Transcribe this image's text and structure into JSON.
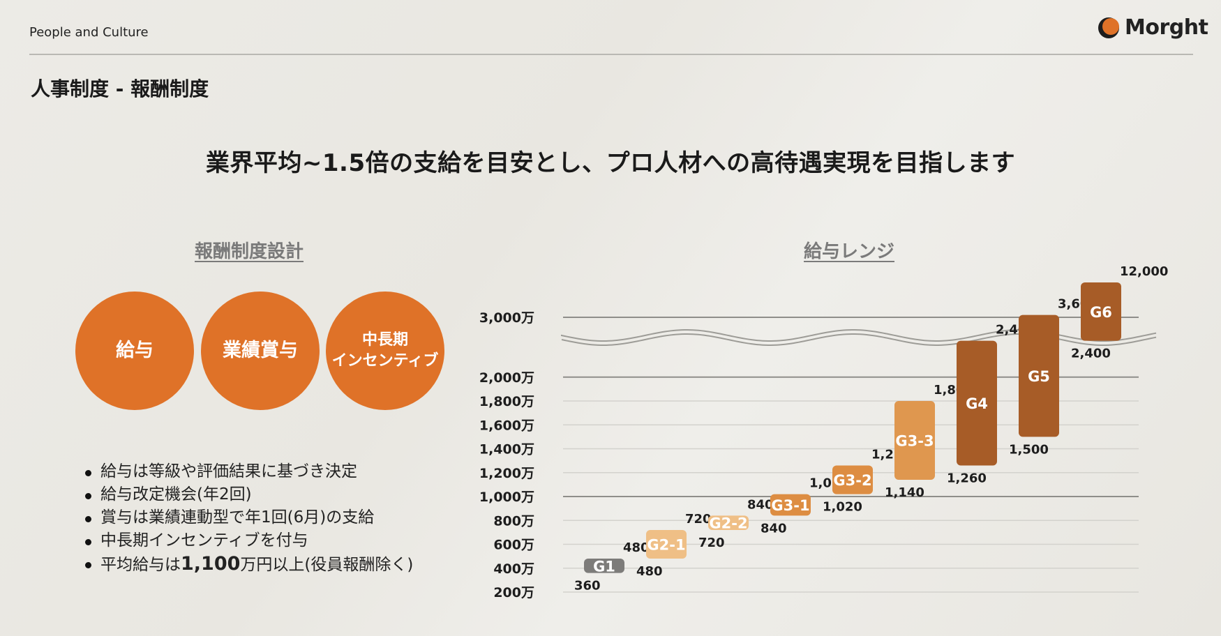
{
  "header": {
    "label": "People and Culture",
    "brand": "Morght",
    "brand_color": "#df7228"
  },
  "page_title": "人事制度 - 報酬制度",
  "headline": "業界平均~1.5倍の支給を目安とし、プロ人材への高待遇実現を目指します",
  "left_section": {
    "title": "報酬制度設計",
    "circles": [
      {
        "lines": [
          "給与"
        ]
      },
      {
        "lines": [
          "業績賞与"
        ]
      },
      {
        "lines": [
          "中長期",
          "インセンティブ"
        ]
      }
    ],
    "bullets": [
      {
        "text": "給与は等級や評価結果に基づき決定"
      },
      {
        "text": "給与改定機会(年2回)"
      },
      {
        "text": "賞与は業績連動型で年1回(6月)の支給"
      },
      {
        "text": "中長期インセンティブを付与"
      },
      {
        "prefix": "平均給与は",
        "highlight": "1,100",
        "suffix": "万円以上(役員報酬除く)"
      }
    ],
    "circle_color": "#df7228"
  },
  "chart_data": {
    "type": "range_bar",
    "title": "給与レンジ",
    "unit": "万",
    "y_ticks": [
      "200万",
      "400万",
      "600万",
      "800万",
      "1,000万",
      "1,200万",
      "1,400万",
      "1,600万",
      "1,800万",
      "2,000万",
      "3,000万"
    ],
    "axis_break": {
      "between": [
        "2,000万",
        "3,000万"
      ]
    },
    "grades": [
      {
        "name": "G1",
        "min": 360,
        "max": 480,
        "min_label": "360",
        "max_label": "480",
        "color": "#7d7c7a"
      },
      {
        "name": "G2-1",
        "min": 480,
        "max": 720,
        "min_label": "480",
        "max_label": "720",
        "color": "#efbf86"
      },
      {
        "name": "G2-2",
        "min": 720,
        "max": 840,
        "min_label": "720",
        "max_label": "840",
        "color": "#efbf86"
      },
      {
        "name": "G3-1",
        "min": 840,
        "max": 1020,
        "min_label": "840",
        "max_label": "1,020",
        "color": "#dd8d42"
      },
      {
        "name": "G3-2",
        "min": 1020,
        "max": 1260,
        "min_label": "1,020",
        "max_label": "1,260",
        "color": "#dd8d42"
      },
      {
        "name": "G3-3",
        "min": 1140,
        "max": 1800,
        "min_label": "1,140",
        "max_label": "1,800",
        "color": "#df974f"
      },
      {
        "name": "G4",
        "min": 1260,
        "max": 2400,
        "min_label": "1,260",
        "max_label": "2,400",
        "color": "#a75c27"
      },
      {
        "name": "G5",
        "min": 1500,
        "max": 3600,
        "min_label": "1,500",
        "max_label": "3,600",
        "color": "#a75c27"
      },
      {
        "name": "G6",
        "min": 2400,
        "max": 12000,
        "min_label": "2,400",
        "max_label": "12,000",
        "color": "#a75c27"
      }
    ]
  }
}
